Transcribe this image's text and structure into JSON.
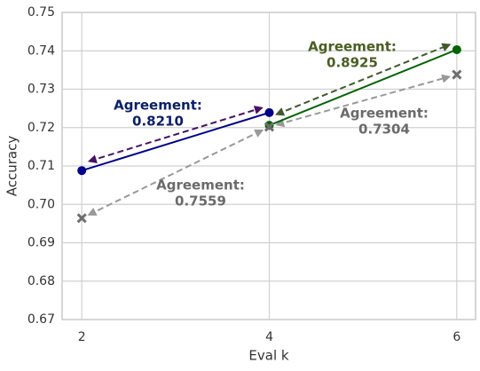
{
  "chart_data": {
    "type": "line",
    "xlabel": "Eval k",
    "ylabel": "Accuracy",
    "xlim": [
      1.79,
      6.2
    ],
    "xticks": [
      2,
      4,
      6
    ],
    "ylim": [
      0.67,
      0.75
    ],
    "yticks": [
      0.67,
      0.68,
      0.69,
      {
        "value": 0.7,
        "label": "0.70"
      },
      0.71,
      0.72,
      0.73,
      0.74,
      0.75
    ],
    "grid": true,
    "series": [
      {
        "color": "#00008b",
        "marker": "o",
        "line": true,
        "x": [
          2,
          4
        ],
        "values": [
          0.7088,
          0.7239
        ]
      },
      {
        "color": "#006400",
        "marker": "o",
        "line": true,
        "x": [
          4,
          6
        ],
        "values": [
          0.7206,
          0.7403
        ]
      },
      {
        "color": "#6e6e6e",
        "marker": "x",
        "line": false,
        "x": [
          2,
          4,
          6
        ],
        "values": [
          0.6964,
          0.7202,
          0.7338
        ]
      }
    ],
    "annotations": [
      {
        "lines": [
          "Agreement:",
          "0.8210"
        ],
        "color": "#0b1f66",
        "arrow_color": "#4a1163"
      },
      {
        "lines": [
          "Agreement:",
          "0.8925"
        ],
        "color": "#4b5e22",
        "arrow_color": "#41592b"
      },
      {
        "lines": [
          "Agreement:",
          "0.7304"
        ],
        "color": "#6a6a6a",
        "arrow_color": "#999999"
      },
      {
        "lines": [
          "Agreement:",
          "0.7559"
        ],
        "color": "#6a6a6a",
        "arrow_color": "#999999"
      }
    ]
  }
}
